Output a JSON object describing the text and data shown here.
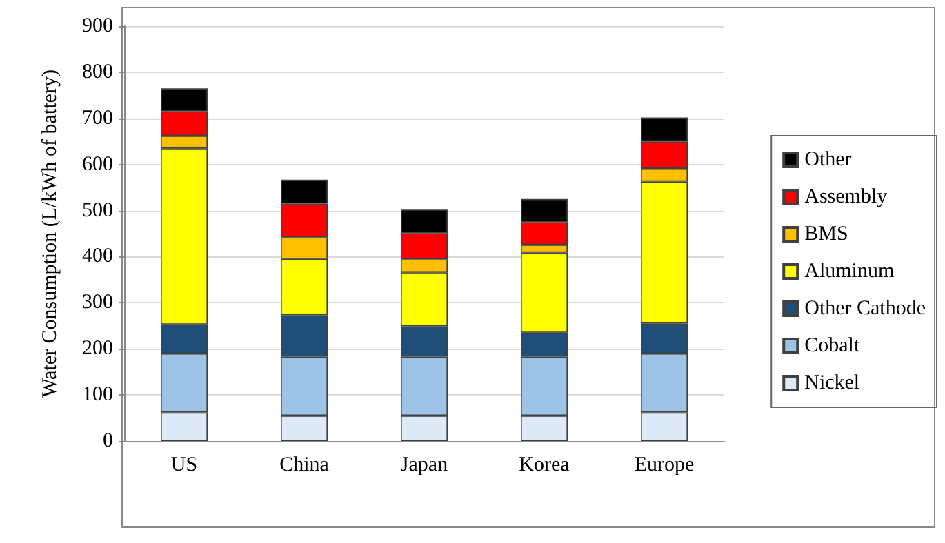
{
  "chart_data": {
    "type": "bar",
    "stacked": true,
    "ylabel": "Water Consumption (L/kWh of battery)",
    "categories": [
      "US",
      "China",
      "Japan",
      "Korea",
      "Europe"
    ],
    "series": [
      {
        "name": "Nickel",
        "color": "#deebf7",
        "values": [
          62,
          55,
          55,
          55,
          62
        ]
      },
      {
        "name": "Cobalt",
        "color": "#9dc3e6",
        "values": [
          128,
          128,
          128,
          128,
          128
        ]
      },
      {
        "name": "Other Cathode",
        "color": "#1f4e79",
        "values": [
          63,
          90,
          66,
          52,
          65
        ]
      },
      {
        "name": "Aluminum",
        "color": "#ffff00",
        "values": [
          382,
          122,
          117,
          174,
          308
        ]
      },
      {
        "name": "BMS",
        "color": "#ffc000",
        "values": [
          27,
          47,
          28,
          17,
          29
        ]
      },
      {
        "name": "Assembly",
        "color": "#ff0000",
        "values": [
          53,
          73,
          57,
          49,
          58
        ]
      },
      {
        "name": "Other",
        "color": "#000000",
        "values": [
          50,
          52,
          51,
          50,
          52
        ]
      }
    ],
    "ylim": [
      0,
      900
    ],
    "yticks": [
      0,
      100,
      200,
      300,
      400,
      500,
      600,
      700,
      800,
      900
    ],
    "grid": "y",
    "legend": "right"
  }
}
